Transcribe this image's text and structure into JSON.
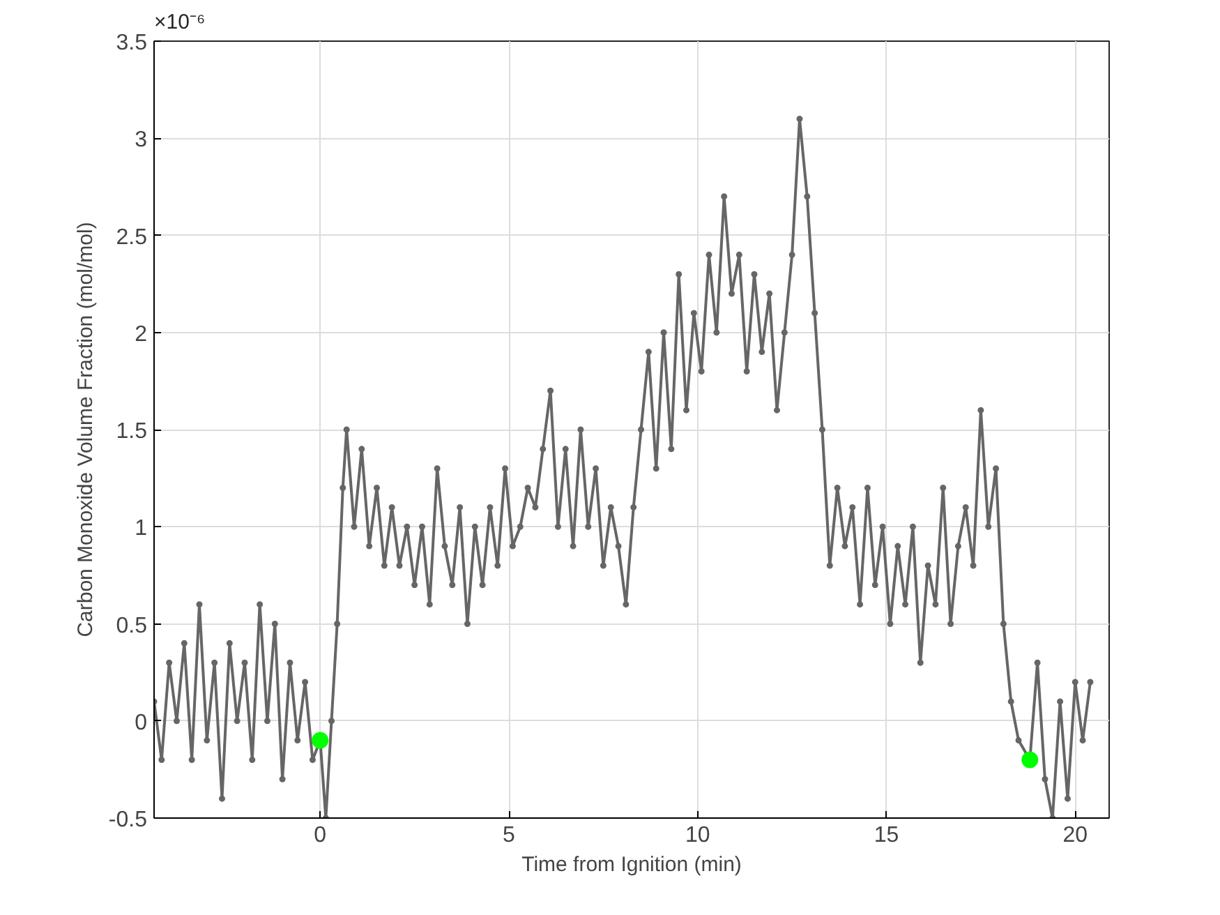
{
  "chart_data": {
    "type": "line",
    "xlabel": "Time from Ignition (min)",
    "ylabel": "Carbon Monoxide Volume Fraction (mol/mol)",
    "annotations": [
      "×10⁻⁶"
    ],
    "xlim": [
      -4.4,
      20.9
    ],
    "xticks": [
      0,
      5,
      10,
      15,
      20
    ],
    "ylim": [
      -0.5,
      3.5
    ],
    "yticks": [
      -0.5,
      0,
      0.5,
      1,
      1.5,
      2,
      2.5,
      3,
      3.5
    ],
    "grid": true,
    "marker": "circle",
    "line_style": "solid",
    "series": [
      {
        "color": "#666666",
        "x": [
          -4.4,
          -4.2,
          -4.0,
          -3.8,
          -3.6,
          -3.4,
          -3.2,
          -3.0,
          -2.8,
          -2.6,
          -2.4,
          -2.2,
          -2.0,
          -1.8,
          -1.6,
          -1.4,
          -1.2,
          -1.0,
          -0.8,
          -0.6,
          -0.4,
          -0.2,
          0,
          0.15,
          0.3,
          0.45,
          0.6,
          0.7,
          0.9,
          1.1,
          1.3,
          1.5,
          1.7,
          1.9,
          2.1,
          2.3,
          2.5,
          2.7,
          2.9,
          3.1,
          3.3,
          3.5,
          3.7,
          3.9,
          4.1,
          4.3,
          4.5,
          4.7,
          4.9,
          5.1,
          5.3,
          5.5,
          5.7,
          5.9,
          6.1,
          6.3,
          6.5,
          6.7,
          6.9,
          7.1,
          7.3,
          7.5,
          7.7,
          7.9,
          8.1,
          8.3,
          8.5,
          8.7,
          8.9,
          9.1,
          9.3,
          9.5,
          9.7,
          9.9,
          10.1,
          10.3,
          10.5,
          10.7,
          10.9,
          11.1,
          11.3,
          11.5,
          11.7,
          11.9,
          12.1,
          12.3,
          12.5,
          12.7,
          12.9,
          13.1,
          13.3,
          13.5,
          13.7,
          13.9,
          14.1,
          14.3,
          14.5,
          14.7,
          14.9,
          15.1,
          15.3,
          15.5,
          15.7,
          15.9,
          16.1,
          16.3,
          16.5,
          16.7,
          16.9,
          17.1,
          17.3,
          17.5,
          17.7,
          17.9,
          18.1,
          18.3,
          18.5,
          18.8,
          19.0,
          19.2,
          19.4,
          19.6,
          19.8,
          20.0,
          20.2,
          20.4
        ],
        "values": [
          0.1,
          -0.2,
          0.3,
          0.0,
          0.4,
          -0.2,
          0.6,
          -0.1,
          0.3,
          -0.4,
          0.4,
          0.0,
          0.3,
          -0.2,
          0.6,
          0.0,
          0.5,
          -0.3,
          0.3,
          -0.1,
          0.2,
          -0.2,
          -0.1,
          -0.5,
          0.0,
          0.5,
          1.2,
          1.5,
          1.0,
          1.4,
          0.9,
          1.2,
          0.8,
          1.1,
          0.8,
          1.0,
          0.7,
          1.0,
          0.6,
          1.3,
          0.9,
          0.7,
          1.1,
          0.5,
          1.0,
          0.7,
          1.1,
          0.8,
          1.3,
          0.9,
          1.0,
          1.2,
          1.1,
          1.4,
          1.7,
          1.0,
          1.4,
          0.9,
          1.5,
          1.0,
          1.3,
          0.8,
          1.1,
          0.9,
          0.6,
          1.1,
          1.5,
          1.9,
          1.3,
          2.0,
          1.4,
          2.3,
          1.6,
          2.1,
          1.8,
          2.4,
          2.0,
          2.7,
          2.2,
          2.4,
          1.8,
          2.3,
          1.9,
          2.2,
          1.6,
          2.0,
          2.4,
          3.1,
          2.7,
          2.1,
          1.5,
          0.8,
          1.2,
          0.9,
          1.1,
          0.6,
          1.2,
          0.7,
          1.0,
          0.5,
          0.9,
          0.6,
          1.0,
          0.3,
          0.8,
          0.6,
          1.2,
          0.5,
          0.9,
          1.1,
          0.8,
          1.6,
          1.0,
          1.3,
          0.5,
          0.1,
          -0.1,
          -0.2,
          0.3,
          -0.3,
          -0.5,
          0.1,
          -0.4,
          0.2,
          -0.1,
          0.2
        ]
      },
      {
        "type": "scatter",
        "color": "#00ff00",
        "x": [
          0,
          18.8
        ],
        "values": [
          -0.1,
          -0.2
        ]
      }
    ]
  }
}
